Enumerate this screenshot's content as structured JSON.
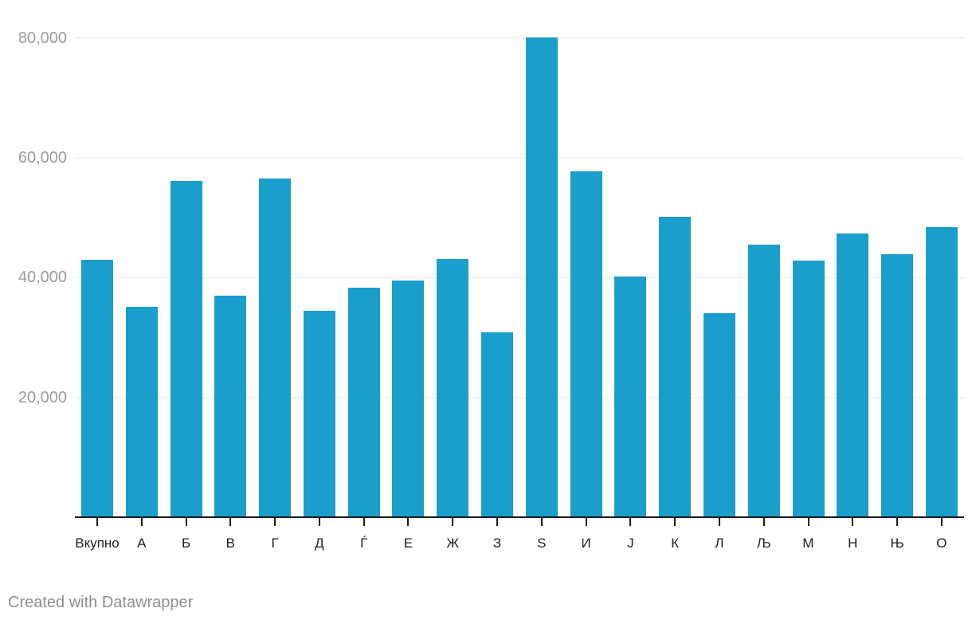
{
  "chart_data": {
    "type": "bar",
    "title": "",
    "categories": [
      "Вкупно",
      "А",
      "Б",
      "В",
      "Г",
      "Д",
      "Ѓ",
      "Е",
      "Ж",
      "З",
      "Ѕ",
      "И",
      "Ј",
      "К",
      "Л",
      "Љ",
      "М",
      "Н",
      "Њ",
      "О"
    ],
    "values": [
      43000,
      35100,
      56200,
      37000,
      56600,
      34500,
      38300,
      39500,
      43100,
      30900,
      80100,
      57800,
      40200,
      50200,
      34100,
      45500,
      42800,
      47400,
      43900,
      48400
    ],
    "xlabel": "",
    "ylabel": "",
    "ylim": [
      0,
      81200
    ],
    "yticks": [
      {
        "value": 20000,
        "label": "20,000"
      },
      {
        "value": 40000,
        "label": "40,000"
      },
      {
        "value": 60000,
        "label": "60,000"
      },
      {
        "value": 80000,
        "label": "80,000"
      }
    ],
    "grid": "horizontal-only",
    "legend": "none",
    "bar_color": "#1a9ecc"
  },
  "colors": {
    "bar": "#1a9ecc",
    "gridline": "#e9e9e9",
    "axis": "#1a1a1a",
    "x_label": "#202020",
    "y_label": "#9b9b9b",
    "footer": "#8e8e8e",
    "background": "#ffffff"
  },
  "footer": {
    "credit": "Created with Datawrapper"
  }
}
